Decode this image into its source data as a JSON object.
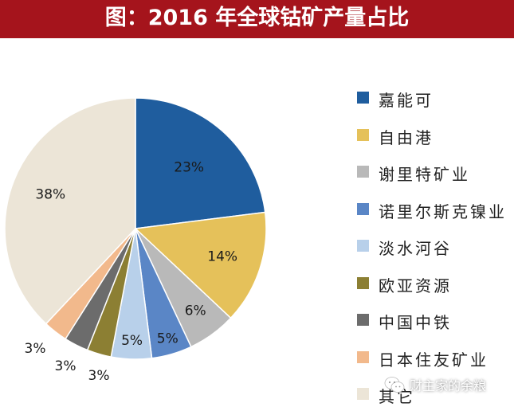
{
  "header": {
    "title": "图：2016 年全球钴矿产量占比"
  },
  "chart_data": {
    "type": "pie",
    "title": "图：2016 年全球钴矿产量占比",
    "categories": [
      "嘉能可",
      "自由港",
      "谢里特矿业",
      "诺里尔斯克镍业",
      "淡水河谷",
      "欧亚资源",
      "中国中铁",
      "日本住友矿业",
      "其它"
    ],
    "values": [
      23,
      14,
      6,
      5,
      5,
      3,
      3,
      3,
      38
    ],
    "labels": [
      "23%",
      "14%",
      "6%",
      "5%",
      "5%",
      "3%",
      "3%",
      "3%",
      "38%"
    ],
    "colors": [
      "#1f5d9e",
      "#e5c15a",
      "#b9b9b9",
      "#5a86c6",
      "#b8d0ea",
      "#8c7f33",
      "#6c6c6c",
      "#f2b98c",
      "#ece5d7"
    ],
    "legend_position": "right"
  },
  "watermark": {
    "text": "财主家的余粮",
    "icon": "wechat-icon"
  }
}
